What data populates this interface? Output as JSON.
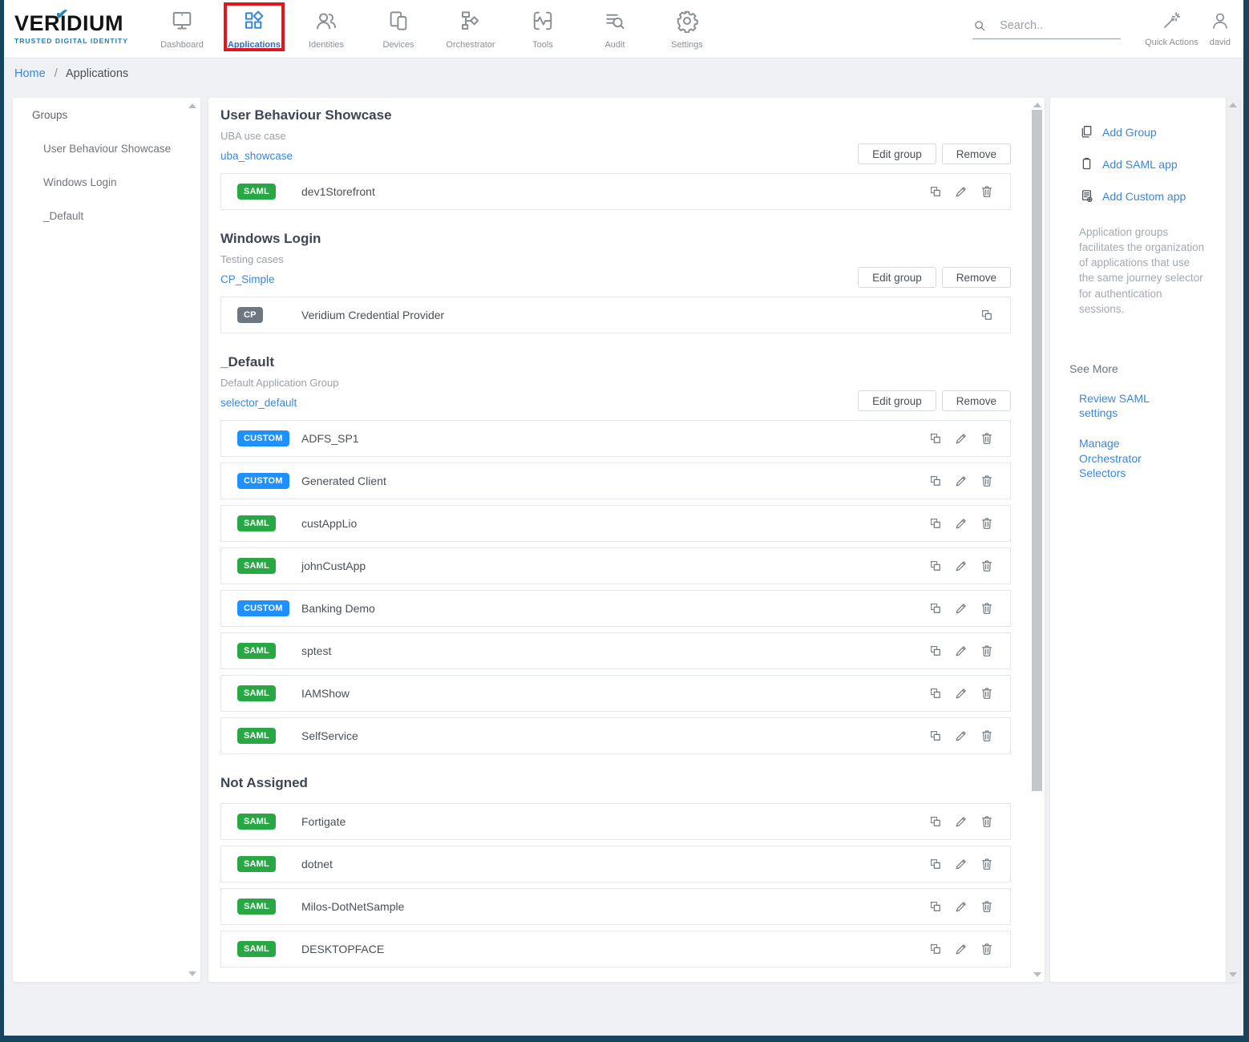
{
  "brand": {
    "name": "VERIDIUM",
    "tagline": "TRUSTED DIGITAL IDENTITY",
    "check_color": "#2187c0"
  },
  "nav": {
    "items": [
      {
        "label": "Dashboard",
        "icon": "monitor-icon",
        "active": false
      },
      {
        "label": "Applications",
        "icon": "apps-grid-icon",
        "active": true
      },
      {
        "label": "Identities",
        "icon": "people-icon",
        "active": false
      },
      {
        "label": "Devices",
        "icon": "devices-icon",
        "active": false
      },
      {
        "label": "Orchestrator",
        "icon": "orchestrator-icon",
        "active": false
      },
      {
        "label": "Tools",
        "icon": "pulse-icon",
        "active": false
      },
      {
        "label": "Audit",
        "icon": "audit-icon",
        "active": false
      },
      {
        "label": "Settings",
        "icon": "gear-icon",
        "active": false
      }
    ]
  },
  "topbar_right": {
    "search_placeholder": "Search..",
    "quick_actions_label": "Quick Actions",
    "user_name": "david"
  },
  "breadcrumb": {
    "home": "Home",
    "separator": "/",
    "current": "Applications"
  },
  "sidebar": {
    "heading": "Groups",
    "items": [
      "User Behaviour Showcase",
      "Windows Login",
      "_Default"
    ]
  },
  "main": {
    "badge_colors": {
      "SAML": "#28a745",
      "CUSTOM": "#1e90ff",
      "CP": "#6e777f"
    },
    "groups": [
      {
        "title": "User Behaviour Showcase",
        "subtitle": "UBA use case",
        "link": "uba_showcase",
        "buttons": [
          "Edit group",
          "Remove"
        ],
        "apps": [
          {
            "badge": "SAML",
            "name": "dev1Storefront",
            "actions": [
              "copy",
              "edit",
              "delete"
            ]
          }
        ]
      },
      {
        "title": "Windows Login",
        "subtitle": "Testing cases",
        "link": "CP_Simple",
        "buttons": [
          "Edit group",
          "Remove"
        ],
        "apps": [
          {
            "badge": "CP",
            "name": "Veridium Credential Provider",
            "actions": [
              "copy"
            ]
          }
        ]
      },
      {
        "title": "_Default",
        "subtitle": "Default Application Group",
        "link": "selector_default",
        "buttons": [
          "Edit group",
          "Remove"
        ],
        "apps": [
          {
            "badge": "CUSTOM",
            "name": "ADFS_SP1",
            "actions": [
              "copy",
              "edit",
              "delete"
            ]
          },
          {
            "badge": "CUSTOM",
            "name": "Generated Client",
            "actions": [
              "copy",
              "edit",
              "delete"
            ]
          },
          {
            "badge": "SAML",
            "name": "custAppLio",
            "actions": [
              "copy",
              "edit",
              "delete"
            ]
          },
          {
            "badge": "SAML",
            "name": "johnCustApp",
            "actions": [
              "copy",
              "edit",
              "delete"
            ]
          },
          {
            "badge": "CUSTOM",
            "name": "Banking Demo",
            "actions": [
              "copy",
              "edit",
              "delete"
            ]
          },
          {
            "badge": "SAML",
            "name": "sptest",
            "actions": [
              "copy",
              "edit",
              "delete"
            ]
          },
          {
            "badge": "SAML",
            "name": "IAMShow",
            "actions": [
              "copy",
              "edit",
              "delete"
            ]
          },
          {
            "badge": "SAML",
            "name": "SelfService",
            "actions": [
              "copy",
              "edit",
              "delete"
            ]
          }
        ]
      },
      {
        "title": "Not Assigned",
        "subtitle": "",
        "link": "",
        "buttons": [],
        "apps": [
          {
            "badge": "SAML",
            "name": "Fortigate",
            "actions": [
              "copy",
              "edit",
              "delete"
            ]
          },
          {
            "badge": "SAML",
            "name": "dotnet",
            "actions": [
              "copy",
              "edit",
              "delete"
            ]
          },
          {
            "badge": "SAML",
            "name": "Milos-DotNetSample",
            "actions": [
              "copy",
              "edit",
              "delete"
            ]
          },
          {
            "badge": "SAML",
            "name": "DESKTOPFACE",
            "actions": [
              "copy",
              "edit",
              "delete"
            ]
          }
        ]
      }
    ]
  },
  "aside": {
    "actions": [
      {
        "label": "Add Group",
        "icon": "add-group-icon"
      },
      {
        "label": "Add SAML app",
        "icon": "add-saml-icon"
      },
      {
        "label": "Add Custom app",
        "icon": "add-custom-icon"
      }
    ],
    "description": "Application groups facilitates the organization of applications that use the same journey selector for authentication sessions.",
    "see_more_title": "See More",
    "see_more_links": [
      "Review SAML settings",
      "Manage Orchestrator Selectors"
    ]
  },
  "colors": {
    "link": "#3a87d8",
    "highlight_red": "#e4151b",
    "frame_navy": "#15455f"
  }
}
